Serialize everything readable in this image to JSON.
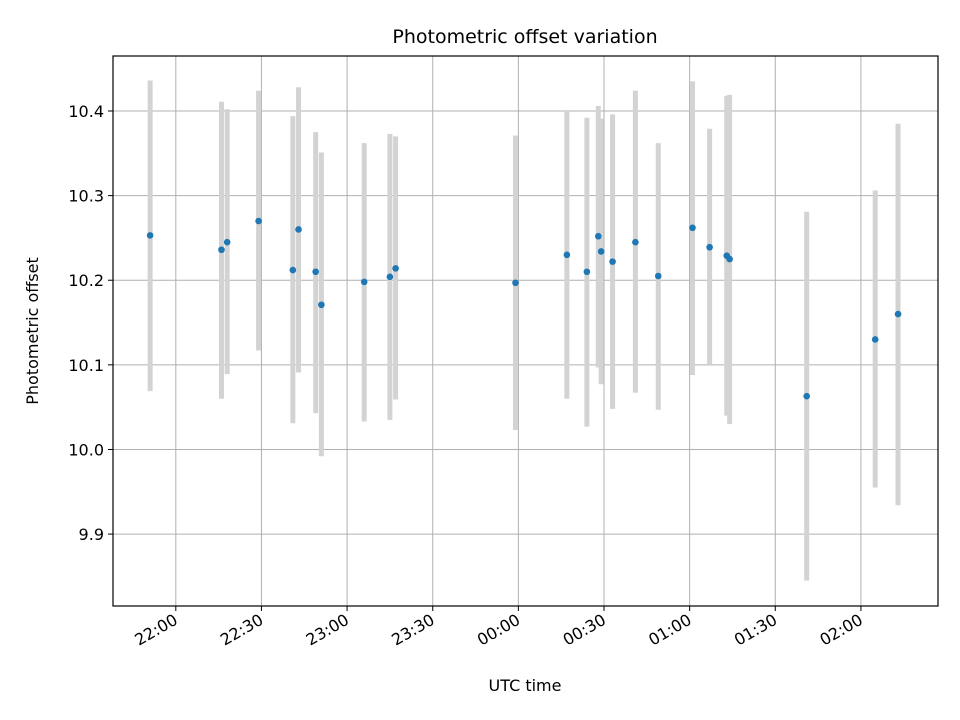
{
  "chart_data": {
    "type": "scatter",
    "title": "Photometric offset variation",
    "xlabel": "UTC time",
    "ylabel": "Photometric offset",
    "x_ticks": [
      "22:00",
      "22:30",
      "23:00",
      "23:30",
      "00:00",
      "00:30",
      "01:00",
      "01:30",
      "02:00"
    ],
    "y_ticks": [
      "9.9",
      "10.0",
      "10.1",
      "10.2",
      "10.3",
      "10.4"
    ],
    "xlim": [
      "21:38",
      "02:27"
    ],
    "ylim": [
      9.815,
      10.465
    ],
    "grid": true,
    "point_color": "#1f77b4",
    "errorbar_color": "#d3d3d3",
    "points": [
      {
        "x": "21:51",
        "y": 10.253,
        "yerr_low": 10.069,
        "yerr_high": 10.436
      },
      {
        "x": "22:16",
        "y": 10.236,
        "yerr_low": 10.06,
        "yerr_high": 10.411
      },
      {
        "x": "22:18",
        "y": 10.245,
        "yerr_low": 10.089,
        "yerr_high": 10.402
      },
      {
        "x": "22:29",
        "y": 10.27,
        "yerr_low": 10.117,
        "yerr_high": 10.424
      },
      {
        "x": "22:41",
        "y": 10.212,
        "yerr_low": 10.031,
        "yerr_high": 10.394
      },
      {
        "x": "22:43",
        "y": 10.26,
        "yerr_low": 10.091,
        "yerr_high": 10.428
      },
      {
        "x": "22:49",
        "y": 10.21,
        "yerr_low": 10.043,
        "yerr_high": 10.375
      },
      {
        "x": "22:51",
        "y": 10.171,
        "yerr_low": 9.992,
        "yerr_high": 10.351
      },
      {
        "x": "23:06",
        "y": 10.198,
        "yerr_low": 10.033,
        "yerr_high": 10.362
      },
      {
        "x": "23:15",
        "y": 10.204,
        "yerr_low": 10.035,
        "yerr_high": 10.373
      },
      {
        "x": "23:17",
        "y": 10.214,
        "yerr_low": 10.059,
        "yerr_high": 10.37
      },
      {
        "x": "23:59",
        "y": 10.197,
        "yerr_low": 10.023,
        "yerr_high": 10.371
      },
      {
        "x": "00:17",
        "y": 10.23,
        "yerr_low": 10.06,
        "yerr_high": 10.4
      },
      {
        "x": "00:24",
        "y": 10.21,
        "yerr_low": 10.027,
        "yerr_high": 10.392
      },
      {
        "x": "00:28",
        "y": 10.252,
        "yerr_low": 10.097,
        "yerr_high": 10.406
      },
      {
        "x": "00:29",
        "y": 10.234,
        "yerr_low": 10.077,
        "yerr_high": 10.391
      },
      {
        "x": "00:33",
        "y": 10.222,
        "yerr_low": 10.048,
        "yerr_high": 10.396
      },
      {
        "x": "00:41",
        "y": 10.245,
        "yerr_low": 10.067,
        "yerr_high": 10.424
      },
      {
        "x": "00:49",
        "y": 10.205,
        "yerr_low": 10.047,
        "yerr_high": 10.362
      },
      {
        "x": "01:01",
        "y": 10.262,
        "yerr_low": 10.088,
        "yerr_high": 10.435
      },
      {
        "x": "01:07",
        "y": 10.239,
        "yerr_low": 10.1,
        "yerr_high": 10.379
      },
      {
        "x": "01:13",
        "y": 10.229,
        "yerr_low": 10.04,
        "yerr_high": 10.418
      },
      {
        "x": "01:14",
        "y": 10.225,
        "yerr_low": 10.03,
        "yerr_high": 10.419
      },
      {
        "x": "01:41",
        "y": 10.063,
        "yerr_low": 9.845,
        "yerr_high": 10.281
      },
      {
        "x": "02:05",
        "y": 10.13,
        "yerr_low": 9.955,
        "yerr_high": 10.306
      },
      {
        "x": "02:13",
        "y": 10.16,
        "yerr_low": 9.934,
        "yerr_high": 10.385
      }
    ]
  }
}
